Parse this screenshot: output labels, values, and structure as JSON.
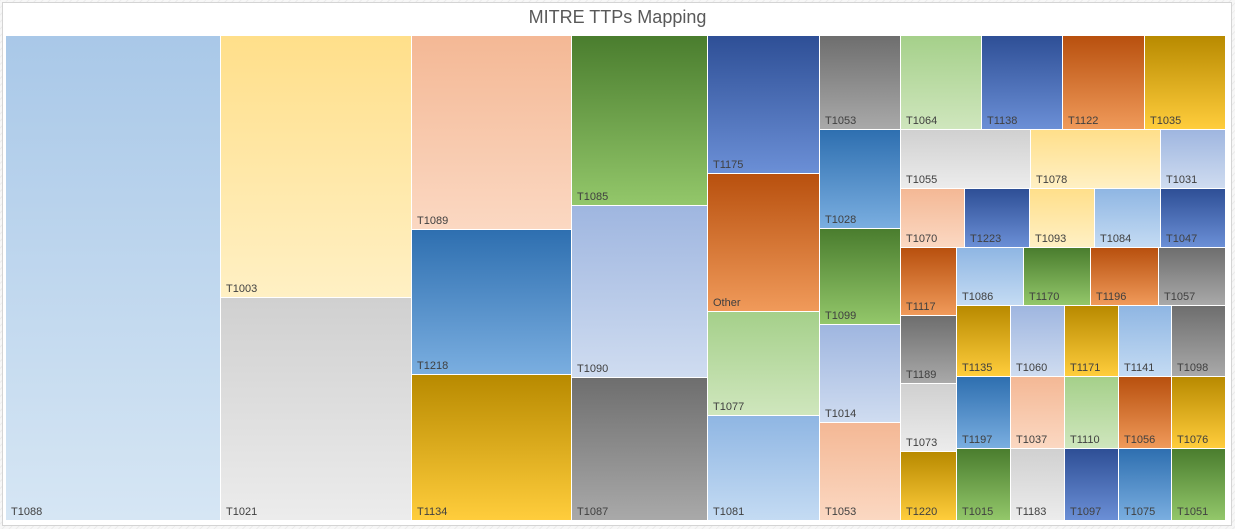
{
  "chart_data": {
    "type": "treemap",
    "title": "MITRE TTPs Mapping",
    "legend": "none",
    "values_note_unprinted": true,
    "colors": {
      "blue_light": [
        "#a9c8e8",
        "#d6e6f4"
      ],
      "yellow_light": [
        "#ffdf8a",
        "#fff0c4"
      ],
      "gray_light": [
        "#d0d0d0",
        "#ececec"
      ],
      "peach": [
        "#f4b895",
        "#fbd8c2"
      ],
      "blue_mid": [
        "#2e6fb0",
        "#7aaee0"
      ],
      "gold": [
        "#b88a00",
        "#ffcd3c"
      ],
      "green": [
        "#4a7d2e",
        "#93c76a"
      ],
      "periwinkle": [
        "#9fb6e0",
        "#cfdcf0"
      ],
      "gray_dark": [
        "#6e6e6e",
        "#a9a9a9"
      ],
      "navy": [
        "#2e4f96",
        "#6b8fd6"
      ],
      "orange": [
        "#b8500e",
        "#f09a5a"
      ],
      "green_light": [
        "#a5d08a",
        "#cfe6bd"
      ],
      "sky": [
        "#8fb6e3",
        "#c4dbf3"
      ]
    },
    "cells": [
      {
        "label": "T1088",
        "color": "blue_light"
      },
      {
        "label": "T1003",
        "color": "yellow_light"
      },
      {
        "label": "T1021",
        "color": "gray_light"
      },
      {
        "label": "T1089",
        "color": "peach"
      },
      {
        "label": "T1218",
        "color": "blue_mid"
      },
      {
        "label": "T1134",
        "color": "gold"
      },
      {
        "label": "T1085",
        "color": "green"
      },
      {
        "label": "T1090",
        "color": "periwinkle"
      },
      {
        "label": "T1087",
        "color": "gray_dark"
      },
      {
        "label": "T1175",
        "color": "navy"
      },
      {
        "label": "Other",
        "color": "orange"
      },
      {
        "label": "T1077",
        "color": "green_light"
      },
      {
        "label": "T1081",
        "color": "sky"
      },
      {
        "label": "T1053",
        "color": "gray_dark"
      },
      {
        "label": "T1028",
        "color": "blue_mid"
      },
      {
        "label": "T1099",
        "color": "green"
      },
      {
        "label": "T1014",
        "color": "periwinkle"
      },
      {
        "label": "T1053",
        "color": "peach"
      },
      {
        "label": "T1064",
        "color": "green_light"
      },
      {
        "label": "T1138",
        "color": "navy"
      },
      {
        "label": "T1122",
        "color": "orange"
      },
      {
        "label": "T1035",
        "color": "gold"
      },
      {
        "label": "T1055",
        "color": "gray_light"
      },
      {
        "label": "T1078",
        "color": "yellow_light"
      },
      {
        "label": "T1031",
        "color": "periwinkle"
      },
      {
        "label": "T1070",
        "color": "peach"
      },
      {
        "label": "T1223",
        "color": "navy"
      },
      {
        "label": "T1093",
        "color": "yellow_light"
      },
      {
        "label": "T1084",
        "color": "sky"
      },
      {
        "label": "T1047",
        "color": "navy"
      },
      {
        "label": "T1117",
        "color": "orange"
      },
      {
        "label": "T1086",
        "color": "sky"
      },
      {
        "label": "T1170",
        "color": "green"
      },
      {
        "label": "T1196",
        "color": "orange"
      },
      {
        "label": "T1057",
        "color": "gray_dark"
      },
      {
        "label": "T1189",
        "color": "gray_dark"
      },
      {
        "label": "T1135",
        "color": "gold"
      },
      {
        "label": "T1060",
        "color": "periwinkle"
      },
      {
        "label": "T1171",
        "color": "gold"
      },
      {
        "label": "T1141",
        "color": "sky"
      },
      {
        "label": "T1098",
        "color": "gray_dark"
      },
      {
        "label": "T1073",
        "color": "gray_light"
      },
      {
        "label": "T1197",
        "color": "blue_mid"
      },
      {
        "label": "T1037",
        "color": "peach"
      },
      {
        "label": "T1110",
        "color": "green_light"
      },
      {
        "label": "T1056",
        "color": "orange"
      },
      {
        "label": "T1076",
        "color": "gold"
      },
      {
        "label": "T1220",
        "color": "gold"
      },
      {
        "label": "T1015",
        "color": "green"
      },
      {
        "label": "T1183",
        "color": "gray_light"
      },
      {
        "label": "T1097",
        "color": "navy"
      },
      {
        "label": "T1075",
        "color": "blue_mid"
      },
      {
        "label": "T1051",
        "color": "green"
      }
    ]
  }
}
